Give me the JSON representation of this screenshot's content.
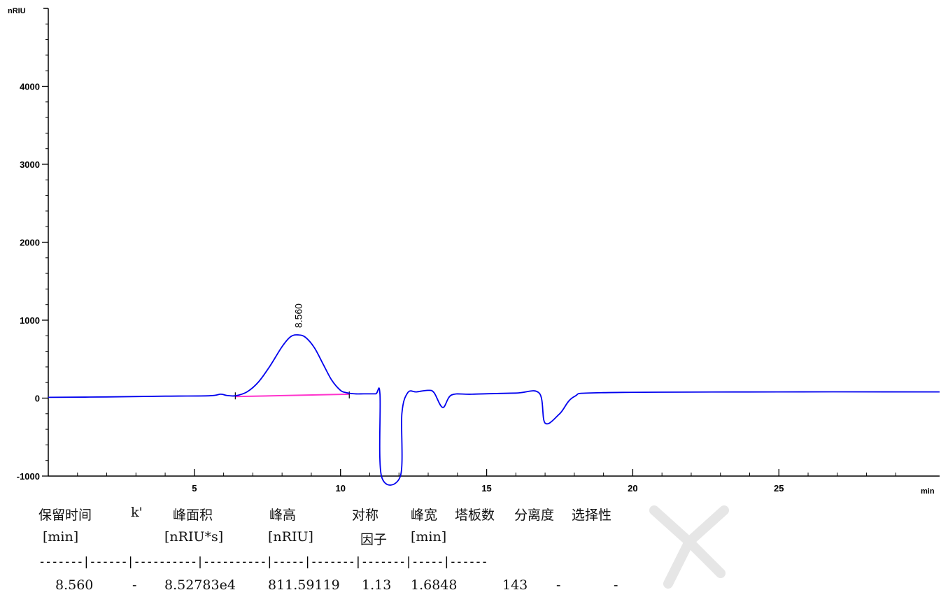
{
  "chart_data": {
    "type": "line",
    "title": "",
    "xlabel": "min",
    "ylabel": "nRIU",
    "xlim": [
      0,
      30.5
    ],
    "ylim": [
      -1000,
      5000
    ],
    "x_ticks": [
      5,
      10,
      15,
      20,
      25
    ],
    "y_ticks": [
      -1000,
      0,
      1000,
      2000,
      3000,
      4000
    ],
    "grid": false,
    "series": [
      {
        "color": "#0000ee",
        "x": [
          0,
          2,
          4,
          5.5,
          5.9,
          6.1,
          6.4,
          6.8,
          7.2,
          7.6,
          8.0,
          8.3,
          8.56,
          8.8,
          9.1,
          9.4,
          9.7,
          10.0,
          10.2,
          10.5,
          10.8,
          11.2,
          11.35,
          11.4,
          12.05,
          12.1,
          12.3,
          12.6,
          13.0,
          13.2,
          13.5,
          13.8,
          14.5,
          16.0,
          16.8,
          17.0,
          17.5,
          18.0,
          19.0,
          25.0,
          30.5
        ],
        "y": [
          10,
          15,
          25,
          30,
          50,
          35,
          30,
          80,
          210,
          420,
          660,
          790,
          811,
          780,
          650,
          440,
          230,
          100,
          70,
          55,
          55,
          55,
          50,
          -1000,
          -1000,
          -200,
          70,
          80,
          100,
          70,
          -120,
          40,
          50,
          65,
          65,
          -320,
          -200,
          20,
          70,
          80,
          80
        ]
      }
    ],
    "baseline": {
      "color": "#ff33cc",
      "x": [
        6.4,
        10.3
      ],
      "y": [
        20,
        50
      ]
    },
    "annotations": [
      {
        "text": "8.560",
        "x": 8.56,
        "y": 811,
        "rotation": -90
      }
    ]
  },
  "results_table": {
    "headers_row1": [
      "保留时间",
      "k'",
      "峰面积",
      "峰高",
      "对称",
      "峰宽",
      "塔板数",
      "分离度",
      "选择性"
    ],
    "headers_row2": [
      "[min]",
      "",
      "[nRIU*s]",
      "[nRIU]",
      "因子",
      "[min]",
      "",
      "",
      ""
    ],
    "separator": "-------|------|----------|----------|-----|-------|-------|-----|------",
    "row": [
      "8.560",
      "-",
      "8.52783e4",
      "811.59119",
      "1.13",
      "1.6848",
      "143",
      "-",
      "-"
    ]
  },
  "style": {
    "axis_color": "#000000",
    "trace_color": "#0000ee",
    "baseline_color": "#ff33cc",
    "watermark_color": "#e6e6e6"
  }
}
